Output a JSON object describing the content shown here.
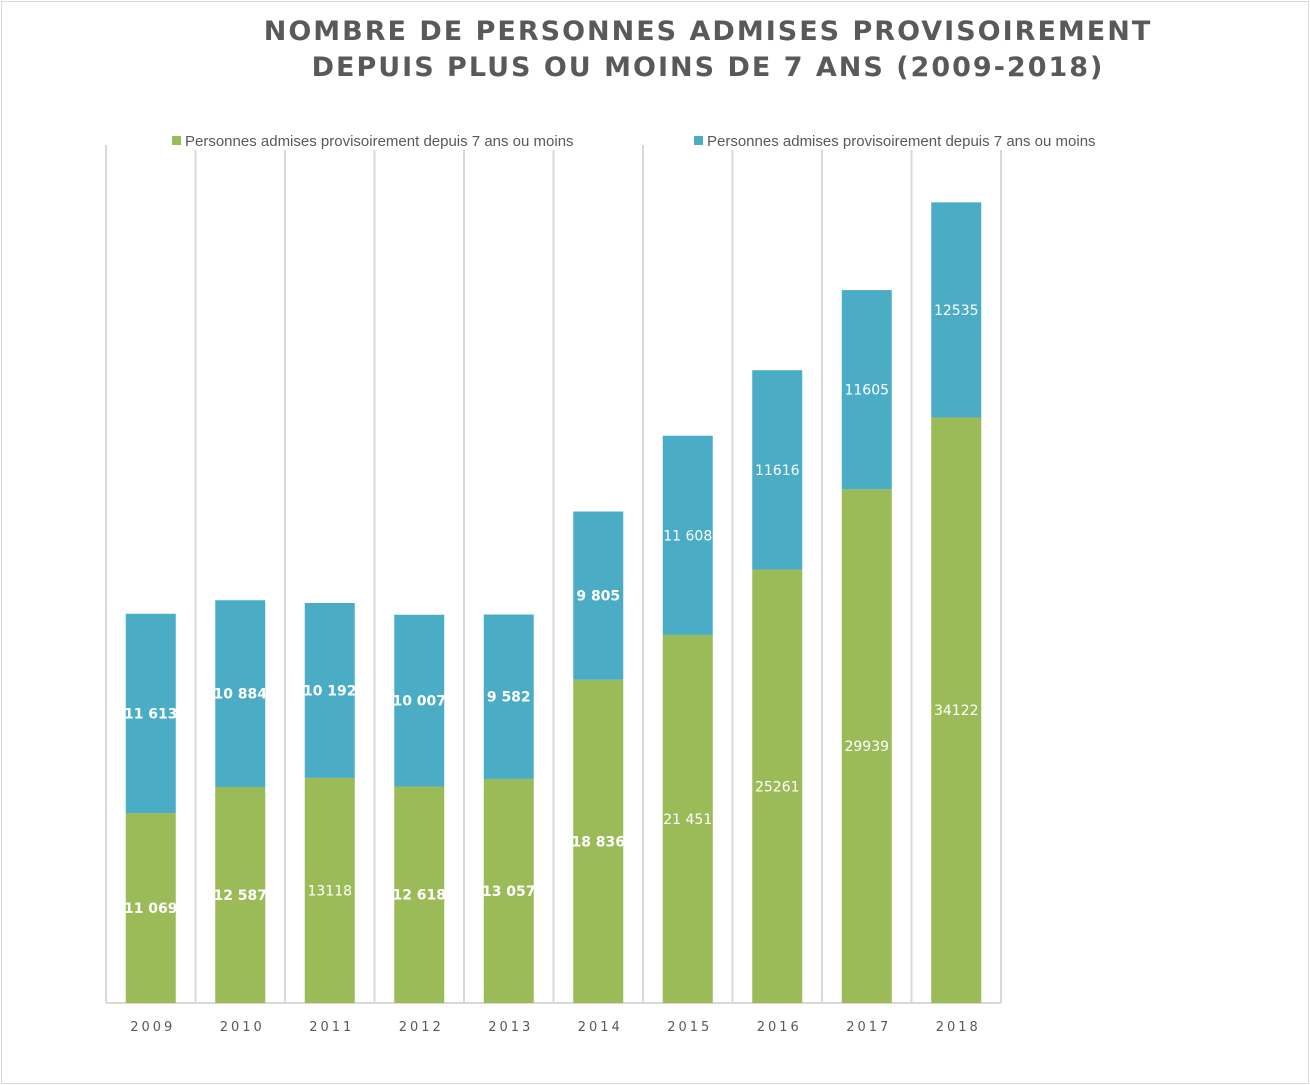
{
  "chart_data": {
    "type": "bar",
    "stacked": true,
    "title_lines": [
      "NOMBRE DE PERSONNES ADMISES PROVISOIREMENT",
      "DEPUIS PLUS OU MOINS DE 7 ANS (2009-2018)"
    ],
    "categories": [
      "2009",
      "2010",
      "2011",
      "2012",
      "2013",
      "2014",
      "2015",
      "2016",
      "2017",
      "2018"
    ],
    "series": [
      {
        "name": "Personnes admises provisoirement depuis 7 ans ou moins",
        "color": "#9bbb59",
        "values": [
          11069,
          12587,
          13118,
          12618,
          13057,
          18836,
          21451,
          25261,
          29939,
          34122
        ],
        "labels": [
          "11 069",
          "12 587",
          "13118",
          "12 618",
          "13 057",
          "18 836",
          "21 451",
          "25261",
          "29939",
          "34122"
        ],
        "bold": [
          true,
          true,
          false,
          true,
          true,
          true,
          false,
          false,
          false,
          false
        ]
      },
      {
        "name": "Personnes admises provisoirement depuis 7 ans ou moins",
        "color": "#4bacc6",
        "values": [
          11613,
          10884,
          10192,
          10007,
          9582,
          9805,
          11608,
          11616,
          11605,
          12535
        ],
        "labels": [
          "11 613",
          "10 884",
          "10 192",
          "10 007",
          "9 582",
          "9 805",
          "11 608",
          "11616",
          "11605",
          "12535"
        ],
        "bold": [
          true,
          true,
          true,
          true,
          true,
          true,
          false,
          false,
          false,
          false
        ]
      }
    ],
    "ylim": [
      0,
      50000
    ],
    "grid": "vertical category separators",
    "legend_position": "top",
    "xlabel": "",
    "ylabel": ""
  }
}
